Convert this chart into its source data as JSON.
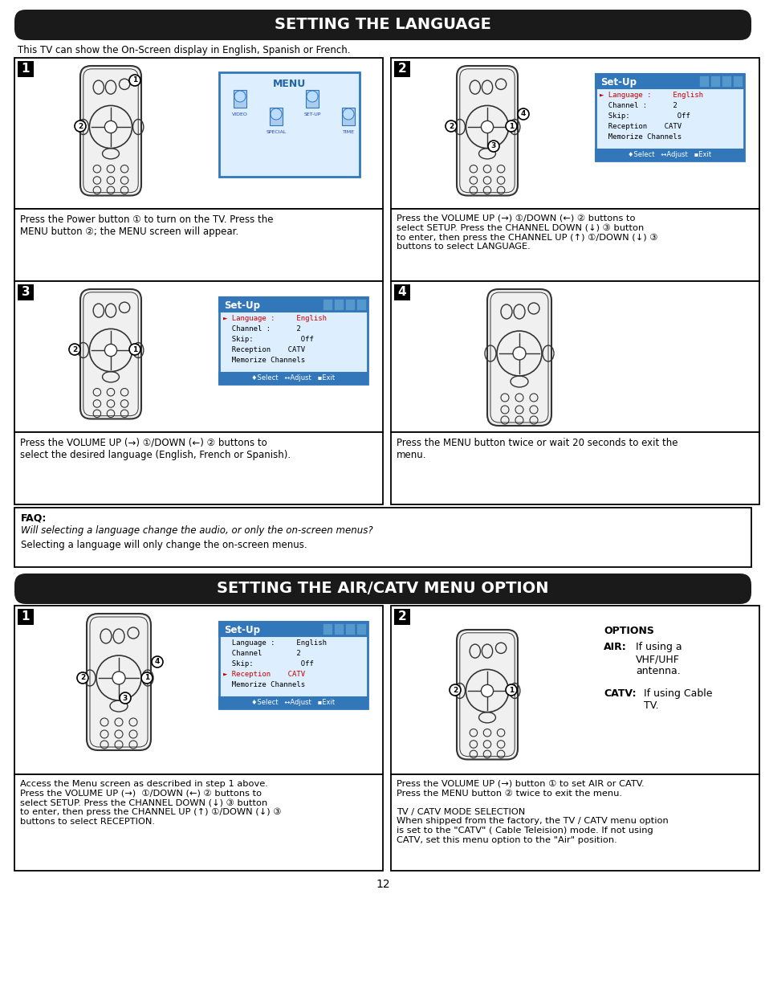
{
  "page_bg": "#ffffff",
  "header1_text": "SETTING THE LANGUAGE",
  "header1_bg": "#1a1a1a",
  "header1_color": "#ffffff",
  "header2_text": "SETTING THE AIR/CATV MENU OPTION",
  "header2_bg": "#1a1a1a",
  "header2_color": "#ffffff",
  "intro_text": "This TV can show the On-Screen display in English, Spanish or French.",
  "faq_title": "FAQ:",
  "faq_q": "Will selecting a language change the audio, or only the on-screen menus?",
  "faq_a": "Selecting a language will only change the on-screen menus.",
  "page_number": "12",
  "s1_step1_desc": "Press the Power button ① to turn on the TV. Press the\nMENU button ②; the MENU screen will appear.",
  "s1_step2_desc": "Press the VOLUME UP (→) ①/DOWN (←) ② buttons to\nselect SETUP. Press the CHANNEL DOWN (↓) ③ button\nto enter, then press the CHANNEL UP (↑) ①/DOWN (↓) ③\nbuttons to select LANGUAGE.",
  "s1_step3_desc": "Press the VOLUME UP (→) ①/DOWN (←) ② buttons to\nselect the desired language (English, French or Spanish).",
  "s1_step4_desc": "Press the MENU button twice or wait 20 seconds to exit the\nmenu.",
  "s2_step1_desc": "Access the Menu screen as described in step 1 above.\nPress the VOLUME UP (→)  ①/DOWN (←) ② buttons to\nselect SETUP. Press the CHANNEL DOWN (↓) ③ button\nto enter, then press the CHANNEL UP (↑) ①/DOWN (↓) ③\nbuttons to select RECEPTION.",
  "s2_step2_desc": "Press the VOLUME UP (→) button ① to set AIR or CATV.\nPress the MENU button ② twice to exit the menu.\n\nTV / CATV MODE SELECTION\nWhen shipped from the factory, the TV / CATV menu option\nis set to the \"CATV\" ( Cable Tele​ision) mode. If not using\nCATV, set this menu option to the \"Air\" position.",
  "options_title": "OPTIONS",
  "air_label": "AIR:",
  "air_text": "If using a\nVHF/UHF\nantenna.",
  "catv_label": "CATV:",
  "catv_text": "If using Cable\nTV.",
  "setup_menu1_items": [
    "► Language :     English",
    "  Channel :      2",
    "  Skip:           Off",
    "  Reception    CATV",
    "  Memorize Channels"
  ],
  "setup_menu2_items": [
    "  Language :     English",
    "  Channel        2",
    "  Skip:           Off",
    "► Reception    CATV",
    "  Memorize Channels"
  ],
  "setup_footer": "♦Select   ↔Adjust   ▪Exit",
  "menu_screen_title": "MENU",
  "menu_screen_items": [
    "VIDEO",
    "SPECIAL",
    "SET-UP",
    "TIME"
  ],
  "remote_body_color": "#f0f0f0",
  "remote_outline_color": "#333333",
  "menu_title_bg": "#3377bb",
  "menu_title_color": "#ffffff",
  "menu_body_bg": "#ddeeff",
  "menu_footer_bg": "#3377bb",
  "menu_footer_color": "#ffffff",
  "menu_border_color": "#3377bb"
}
